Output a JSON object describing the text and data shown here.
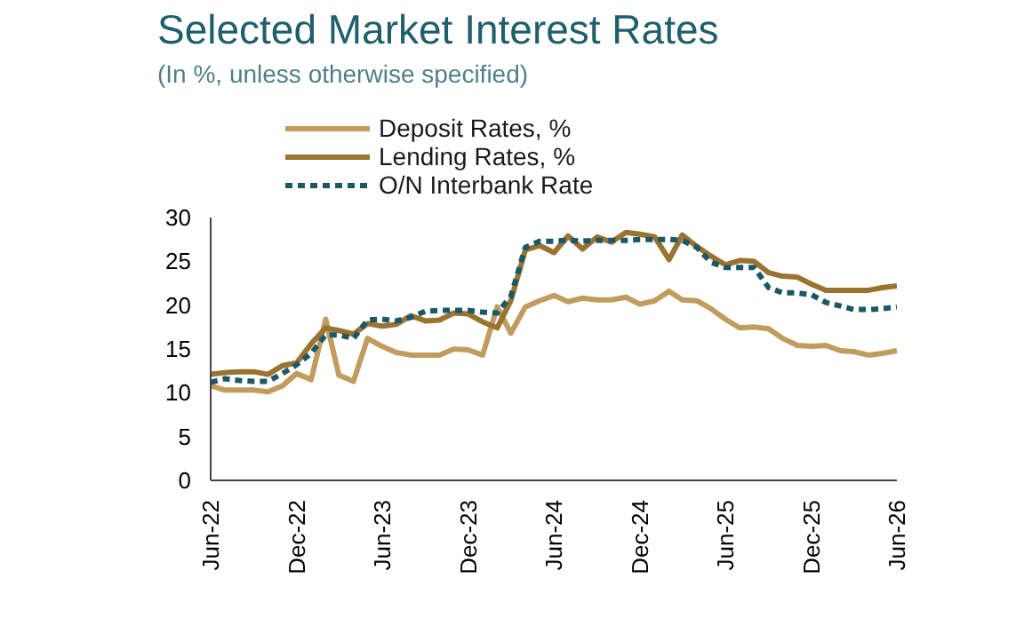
{
  "chart_data": {
    "type": "line",
    "title": "Selected Market Interest Rates",
    "subtitle": "(In %, unless otherwise specified)",
    "x": [
      "2022-06",
      "2022-07",
      "2022-08",
      "2022-09",
      "2022-10",
      "2022-11",
      "2022-12",
      "2023-01",
      "2023-02",
      "2023-03",
      "2023-04",
      "2023-05",
      "2023-06",
      "2023-07",
      "2023-08",
      "2023-09",
      "2023-10",
      "2023-11",
      "2023-12",
      "2024-01",
      "2024-02",
      "2024-03",
      "2024-04",
      "2024-05",
      "2024-06",
      "2024-07",
      "2024-08",
      "2024-09",
      "2024-10",
      "2024-11",
      "2024-12",
      "2025-01",
      "2025-02",
      "2025-03",
      "2025-04",
      "2025-05",
      "2025-06",
      "2025-07",
      "2025-08",
      "2025-09",
      "2025-10",
      "2025-11",
      "2025-12",
      "2026-01",
      "2026-02",
      "2026-03",
      "2026-04",
      "2026-05",
      "2026-06"
    ],
    "series": [
      {
        "name": "Deposit Rates, %",
        "color": "#c19c5e",
        "values": [
          10.8,
          10.3,
          10.3,
          10.3,
          10.1,
          10.8,
          12.2,
          11.5,
          18.4,
          12.0,
          11.3,
          16.2,
          15.3,
          14.6,
          14.3,
          14.3,
          14.3,
          15.0,
          14.9,
          14.3,
          19.8,
          16.8,
          19.8,
          20.5,
          21.1,
          20.4,
          20.8,
          20.6,
          20.6,
          20.9,
          20.1,
          20.5,
          21.6,
          20.6,
          20.5,
          19.6,
          18.4,
          17.4,
          17.5,
          17.3,
          16.2,
          15.4,
          15.3,
          15.4,
          14.8,
          14.7,
          14.3,
          14.5,
          14.8
        ]
      },
      {
        "name": "Lending Rates, %",
        "color": "#9b7331",
        "values": [
          12.1,
          12.3,
          12.4,
          12.4,
          12.1,
          13.1,
          13.4,
          15.6,
          17.4,
          17.1,
          16.7,
          17.9,
          17.6,
          17.8,
          18.8,
          18.2,
          18.3,
          19.1,
          19.0,
          18.1,
          17.4,
          20.5,
          26.3,
          26.8,
          26.0,
          27.9,
          26.4,
          27.8,
          27.2,
          28.3,
          28.1,
          27.8,
          25.2,
          28.0,
          26.7,
          25.6,
          24.6,
          25.1,
          25.0,
          23.7,
          23.3,
          23.2,
          22.4,
          21.7,
          21.7,
          21.7,
          21.7,
          22.0,
          22.2
        ]
      },
      {
        "name": "O/N Interbank Rate",
        "color": "#1b5866",
        "line_style": "dashed",
        "values": [
          11.2,
          11.6,
          11.4,
          11.3,
          11.3,
          12.2,
          13.2,
          14.5,
          16.6,
          16.6,
          16.2,
          18.3,
          18.4,
          18.2,
          18.6,
          19.3,
          19.4,
          19.4,
          19.4,
          19.2,
          19.1,
          21.0,
          26.6,
          27.3,
          27.3,
          27.4,
          27.3,
          27.4,
          27.4,
          27.4,
          27.5,
          27.5,
          27.5,
          27.4,
          26.6,
          24.9,
          24.3,
          24.3,
          24.3,
          22.0,
          21.4,
          21.4,
          21.2,
          20.3,
          19.9,
          19.5,
          19.5,
          19.6,
          19.8
        ]
      }
    ],
    "xlim": [
      "2022-06",
      "2026-06"
    ],
    "xticks": [
      {
        "value": "2022-06",
        "label": "Jun-22"
      },
      {
        "value": "2022-12",
        "label": "Dec-22"
      },
      {
        "value": "2023-06",
        "label": "Jun-23"
      },
      {
        "value": "2023-12",
        "label": "Dec-23"
      },
      {
        "value": "2024-06",
        "label": "Jun-24"
      },
      {
        "value": "2024-12",
        "label": "Dec-24"
      },
      {
        "value": "2025-06",
        "label": "Jun-25"
      },
      {
        "value": "2025-12",
        "label": "Dec-25"
      },
      {
        "value": "2026-06",
        "label": "Jun-26"
      }
    ],
    "ylim": [
      0,
      30
    ],
    "yticks": [
      0,
      5,
      10,
      15,
      20,
      25,
      30
    ],
    "grid": false,
    "legend": "top",
    "line_style": "solid",
    "marker": "none"
  }
}
